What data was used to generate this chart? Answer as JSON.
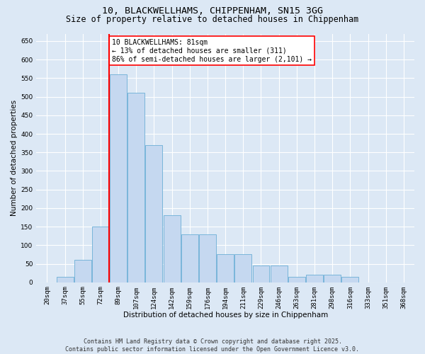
{
  "title_line1": "10, BLACKWELLHAMS, CHIPPENHAM, SN15 3GG",
  "title_line2": "Size of property relative to detached houses in Chippenham",
  "xlabel": "Distribution of detached houses by size in Chippenham",
  "ylabel": "Number of detached properties",
  "bar_labels": [
    "20sqm",
    "37sqm",
    "55sqm",
    "72sqm",
    "89sqm",
    "107sqm",
    "124sqm",
    "142sqm",
    "159sqm",
    "176sqm",
    "194sqm",
    "211sqm",
    "229sqm",
    "246sqm",
    "263sqm",
    "281sqm",
    "298sqm",
    "316sqm",
    "333sqm",
    "351sqm",
    "368sqm"
  ],
  "bar_values": [
    0,
    15,
    60,
    150,
    560,
    510,
    370,
    180,
    130,
    130,
    75,
    75,
    45,
    45,
    15,
    20,
    20,
    15,
    0,
    0,
    0
  ],
  "bar_color": "#c5d8f0",
  "bar_edge_color": "#6baed6",
  "vline_position": 3.5,
  "vline_color": "red",
  "annotation_text": "10 BLACKWELLHAMS: 81sqm\n← 13% of detached houses are smaller (311)\n86% of semi-detached houses are larger (2,101) →",
  "annotation_box_color": "white",
  "annotation_box_edge": "red",
  "ylim": [
    0,
    670
  ],
  "yticks": [
    0,
    50,
    100,
    150,
    200,
    250,
    300,
    350,
    400,
    450,
    500,
    550,
    600,
    650
  ],
  "background_color": "#dce8f5",
  "plot_background": "#dce8f5",
  "footer_text": "Contains HM Land Registry data © Crown copyright and database right 2025.\nContains public sector information licensed under the Open Government Licence v3.0.",
  "title_fontsize": 9.5,
  "subtitle_fontsize": 8.5,
  "axis_label_fontsize": 7.5,
  "tick_fontsize": 6.5,
  "annotation_fontsize": 7,
  "footer_fontsize": 6
}
